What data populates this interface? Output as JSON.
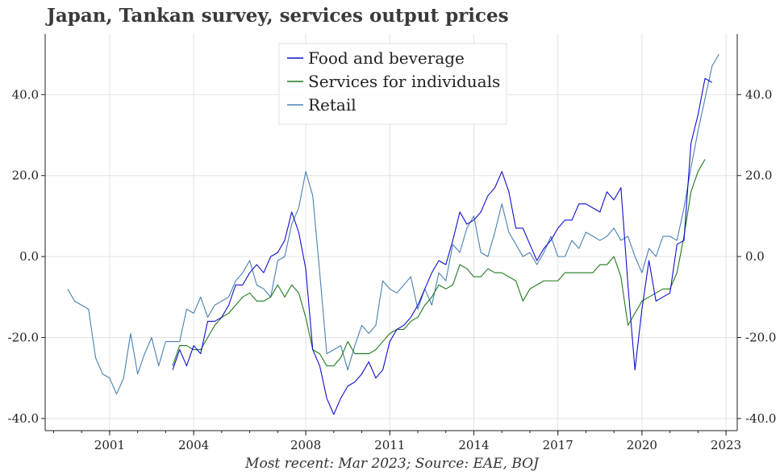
{
  "chart_data": {
    "type": "line",
    "title": "Japan, Tankan survey, services output prices",
    "footer": "Most recent: Mar 2023; Source: EAE, BOJ",
    "xlabel": "",
    "ylabel": "",
    "xlim": [
      1998.7,
      2023.4
    ],
    "ylim": [
      -43,
      55
    ],
    "x_ticks": [
      2001,
      2004,
      2008,
      2011,
      2014,
      2017,
      2020,
      2023
    ],
    "x_tick_labels": [
      "2001",
      "2004",
      "2008",
      "2011",
      "2014",
      "2017",
      "2020",
      "2023"
    ],
    "y_ticks": [
      -40,
      -20,
      0,
      20,
      40
    ],
    "y_tick_labels": [
      "-40.0",
      "-20.0",
      "0.0",
      "20.0",
      "40.0"
    ],
    "grid": true,
    "legend_position": "top-center",
    "series": [
      {
        "name": "Food and beverage",
        "color": "#1010cc",
        "x_start": 2003.25,
        "step": 0.25,
        "values": [
          -28,
          -23,
          -27,
          -22,
          -24,
          -16,
          -16,
          -15,
          -12,
          -7,
          -7,
          -4,
          -2,
          -4,
          0,
          1,
          4,
          11,
          6,
          -3,
          -23,
          -27,
          -35,
          -39,
          -35,
          -32,
          -31,
          -29,
          -26,
          -30,
          -28,
          -21,
          -18,
          -17,
          -15,
          -12,
          -8,
          -4,
          -1,
          -2,
          4,
          11,
          8,
          9,
          11,
          15,
          17,
          21,
          16,
          7,
          7,
          3,
          -1,
          2,
          4,
          7,
          9,
          9,
          13,
          13,
          12,
          11,
          16,
          14,
          17,
          -7,
          -28,
          -13,
          -1,
          -11,
          -10,
          -9,
          3,
          4,
          28,
          35,
          44,
          43
        ]
      },
      {
        "name": "Services for individuals",
        "color": "#1e7a1e",
        "x_start": 2003.25,
        "step": 0.25,
        "values": [
          -27,
          -22,
          -22,
          -23,
          -23,
          -20,
          -17,
          -15,
          -14,
          -12,
          -10,
          -9,
          -11,
          -11,
          -10,
          -7,
          -10,
          -7,
          -9,
          -15,
          -23,
          -24,
          -27,
          -27,
          -25,
          -21,
          -24,
          -24,
          -24,
          -23,
          -21,
          -19,
          -18,
          -18,
          -16,
          -15,
          -12,
          -10,
          -7,
          -8,
          -7,
          -2,
          -3,
          -5,
          -5,
          -3,
          -4,
          -4,
          -5,
          -6,
          -11,
          -8,
          -7,
          -6,
          -6,
          -6,
          -4,
          -4,
          -4,
          -4,
          -4,
          -2,
          -2,
          0,
          -5,
          -17,
          -14,
          -11,
          -10,
          -9,
          -8,
          -8,
          -4,
          5,
          16,
          21,
          24
        ]
      },
      {
        "name": "Retail",
        "color": "#4a80b0",
        "x_start": 1999.5,
        "step": 0.25,
        "values": [
          -8,
          -11,
          -12,
          -13,
          -25,
          -29,
          -30,
          -34,
          -30,
          -19,
          -29,
          -24,
          -20,
          -27,
          -21,
          -21,
          -21,
          -13,
          -14,
          -10,
          -15,
          -12,
          -11,
          -10,
          -6,
          -4,
          -1,
          -7,
          -8,
          -10,
          -1,
          0,
          8,
          12,
          21,
          15,
          -4,
          -24,
          -23,
          -22,
          -28,
          -22,
          -17,
          -19,
          -17,
          -6,
          -8,
          -9,
          -7,
          -5,
          -13,
          -8,
          -12,
          -4,
          -6,
          3,
          1,
          7,
          10,
          1,
          0,
          6,
          13,
          6,
          3,
          0,
          1,
          -2,
          1,
          5,
          0,
          0,
          4,
          2,
          6,
          5,
          4,
          5,
          7,
          4,
          5,
          0,
          -4,
          2,
          0,
          5,
          5,
          4,
          12,
          22,
          31,
          39,
          47,
          50
        ]
      }
    ]
  }
}
